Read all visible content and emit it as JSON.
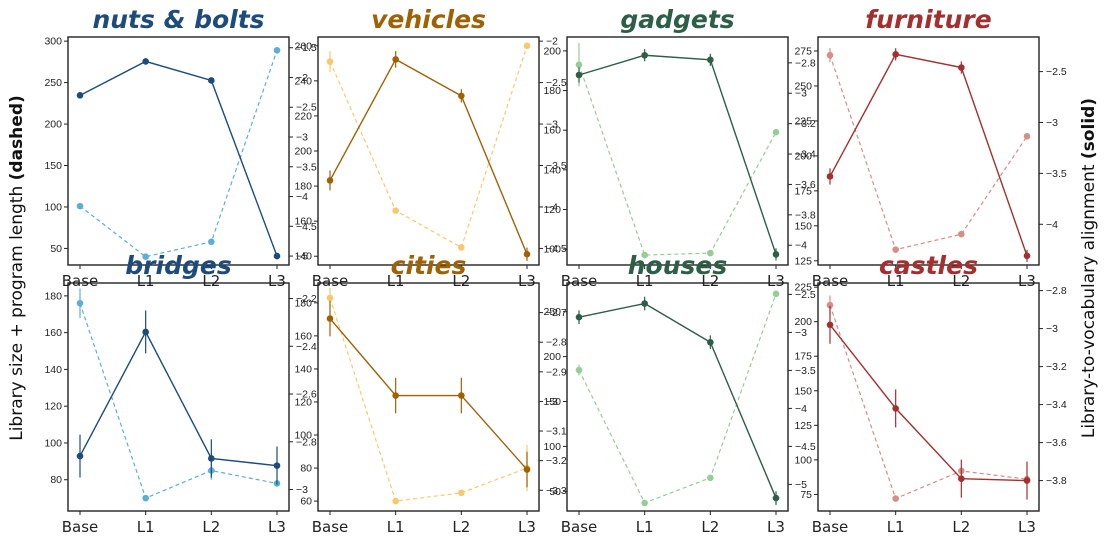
{
  "ylabel_left": {
    "text": "Library size + program length ",
    "emph": "(dashed)"
  },
  "ylabel_right": {
    "text": "Library-to-vocabulary alignment ",
    "emph": "(solid)"
  },
  "chart_data": [
    {
      "type": "line",
      "title": "nuts & bolts",
      "title_color": "#1c4b7c",
      "categories": [
        "Base",
        "L1",
        "L2",
        "L3"
      ],
      "ylim_left": [
        30,
        305
      ],
      "yticks_left": [
        50,
        100,
        150,
        200,
        250,
        300
      ],
      "ylim_right": [
        -5.15,
        -1.32
      ],
      "yticks_right": [
        -5.0,
        -4.5,
        -4.0,
        -3.5,
        -3.0,
        -2.5,
        -2.0,
        -1.5
      ],
      "series": [
        {
          "style": "solid",
          "axis": "right",
          "color": "#1c4b7c",
          "values": [
            -2.3,
            -1.73,
            -2.05,
            -5.0
          ],
          "err": [
            0.05,
            0.05,
            0.05,
            0.05
          ]
        },
        {
          "style": "dashed",
          "axis": "left",
          "color": "#5bafd6",
          "values": [
            101,
            40,
            58,
            289
          ],
          "err": [
            0,
            0,
            0,
            0
          ]
        }
      ]
    },
    {
      "type": "line",
      "title": "vehicles",
      "title_color": "#9e6205",
      "categories": [
        "Base",
        "L1",
        "L2",
        "L3"
      ],
      "ylim_left": [
        135,
        265
      ],
      "yticks_left": [
        140,
        160,
        180,
        200,
        220,
        240,
        260
      ],
      "ylim_right": [
        -4.7,
        -1.95
      ],
      "yticks_right": [
        -4.5,
        -4.0,
        -3.5,
        -3.0,
        -2.5,
        -2.0
      ],
      "series": [
        {
          "style": "solid",
          "axis": "right",
          "color": "#9e6205",
          "values": [
            -3.68,
            -2.22,
            -2.66,
            -4.57
          ],
          "err": [
            0.12,
            0.1,
            0.08,
            0.08
          ]
        },
        {
          "style": "dashed",
          "axis": "left",
          "color": "#f9c86d",
          "values": [
            251,
            166,
            145,
            260
          ],
          "err": [
            6,
            0,
            0,
            0
          ]
        }
      ]
    },
    {
      "type": "line",
      "title": "gadgets",
      "title_color": "#2d5e46",
      "categories": [
        "Base",
        "L1",
        "L2",
        "L3"
      ],
      "ylim_left": [
        92,
        207
      ],
      "yticks_left": [
        100,
        120,
        140,
        160,
        180,
        200
      ],
      "ylim_right": [
        -4.13,
        -2.63
      ],
      "yticks_right": [
        -4.0,
        -3.8,
        -3.6,
        -3.4,
        -3.2,
        -3.0,
        -2.8
      ],
      "series": [
        {
          "style": "solid",
          "axis": "right",
          "color": "#2d5e46",
          "values": [
            -2.88,
            -2.75,
            -2.78,
            -4.06
          ],
          "err": [
            0.05,
            0.04,
            0.04,
            0.04
          ]
        },
        {
          "style": "dashed",
          "axis": "left",
          "color": "#96cc96",
          "values": [
            193,
            97,
            98,
            159
          ],
          "err": [
            11,
            0,
            0,
            0
          ]
        }
      ]
    },
    {
      "type": "line",
      "title": "furniture",
      "title_color": "#a32f2f",
      "categories": [
        "Base",
        "L1",
        "L2",
        "L3"
      ],
      "ylim_left": [
        122,
        285
      ],
      "yticks_left": [
        125,
        150,
        175,
        200,
        225,
        250,
        275
      ],
      "ylim_right": [
        -4.4,
        -2.16
      ],
      "yticks_right": [
        -4.0,
        -3.5,
        -3.0,
        -2.5
      ],
      "series": [
        {
          "style": "solid",
          "axis": "right",
          "color": "#a32f2f",
          "values": [
            -3.53,
            -2.33,
            -2.46,
            -4.31
          ],
          "err": [
            0.08,
            0.06,
            0.06,
            0.06
          ]
        },
        {
          "style": "dashed",
          "axis": "left",
          "color": "#d68e86",
          "values": [
            272,
            133,
            144,
            214
          ],
          "err": [
            5,
            0,
            0,
            0
          ]
        }
      ]
    },
    {
      "type": "line",
      "title": "bridges",
      "title_color": "#1c4b7c",
      "categories": [
        "Base",
        "L1",
        "L2",
        "L3"
      ],
      "ylim_left": [
        63,
        187
      ],
      "yticks_left": [
        80,
        100,
        120,
        140,
        160,
        180
      ],
      "ylim_right": [
        -3.09,
        -2.135
      ],
      "yticks_right": [
        -3.0,
        -2.8,
        -2.6,
        -2.4,
        -2.2
      ],
      "series": [
        {
          "style": "solid",
          "axis": "right",
          "color": "#1c4b7c",
          "values": [
            -2.86,
            -2.34,
            -2.87,
            -2.9
          ],
          "err": [
            0.09,
            0.09,
            0.08,
            0.08
          ]
        },
        {
          "style": "dashed",
          "axis": "left",
          "color": "#5bafd6",
          "values": [
            176,
            70,
            85,
            78
          ],
          "err": [
            8,
            0,
            5,
            0
          ]
        }
      ]
    },
    {
      "type": "line",
      "title": "cities",
      "title_color": "#9e6205",
      "categories": [
        "Base",
        "L1",
        "L2",
        "L3"
      ],
      "ylim_left": [
        54,
        192
      ],
      "yticks_left": [
        60,
        80,
        100,
        120,
        140,
        160,
        180
      ],
      "ylim_right": [
        -3.37,
        -2.6
      ],
      "yticks_right": [
        -3.3,
        -3.2,
        -3.1,
        -3.0,
        -2.9,
        -2.8,
        -2.7
      ],
      "series": [
        {
          "style": "solid",
          "axis": "right",
          "color": "#9e6205",
          "values": [
            -2.72,
            -2.98,
            -2.98,
            -3.23
          ],
          "err": [
            0.06,
            0.06,
            0.06,
            0.06
          ]
        },
        {
          "style": "dashed",
          "axis": "left",
          "color": "#f9c86d",
          "values": [
            183,
            60,
            65,
            80
          ],
          "err": [
            6,
            0,
            0,
            14
          ]
        }
      ]
    },
    {
      "type": "line",
      "title": "houses",
      "title_color": "#2d5e46",
      "categories": [
        "Base",
        "L1",
        "L2",
        "L3"
      ],
      "ylim_left": [
        28,
        282
      ],
      "yticks_left": [
        50,
        100,
        150,
        200,
        250
      ],
      "ylim_right": [
        -5.35,
        -2.35
      ],
      "yticks_right": [
        -5.0,
        -4.5,
        -4.0,
        -3.5,
        -3.0,
        -2.5
      ],
      "series": [
        {
          "style": "solid",
          "axis": "right",
          "color": "#2d5e46",
          "values": [
            -2.8,
            -2.62,
            -3.13,
            -5.18
          ],
          "err": [
            0.09,
            0.09,
            0.09,
            0.09
          ]
        },
        {
          "style": "dashed",
          "axis": "left",
          "color": "#96cc96",
          "values": [
            185,
            37,
            65,
            270
          ],
          "err": [
            6,
            0,
            0,
            0
          ]
        }
      ]
    },
    {
      "type": "line",
      "title": "castles",
      "title_color": "#a32f2f",
      "categories": [
        "Base",
        "L1",
        "L2",
        "L3"
      ],
      "ylim_left": [
        63,
        228
      ],
      "yticks_left": [
        75,
        100,
        125,
        150,
        175,
        200,
        225
      ],
      "ylim_right": [
        -3.96,
        -2.76
      ],
      "yticks_right": [
        -3.8,
        -3.6,
        -3.4,
        -3.2,
        -3.0,
        -2.8
      ],
      "series": [
        {
          "style": "solid",
          "axis": "right",
          "color": "#a32f2f",
          "values": [
            -2.98,
            -3.42,
            -3.79,
            -3.8
          ],
          "err": [
            0.1,
            0.1,
            0.1,
            0.1
          ]
        },
        {
          "style": "dashed",
          "axis": "left",
          "color": "#d68e86",
          "values": [
            212,
            72,
            92,
            86
          ],
          "err": [
            7,
            0,
            0,
            0
          ]
        }
      ]
    }
  ]
}
